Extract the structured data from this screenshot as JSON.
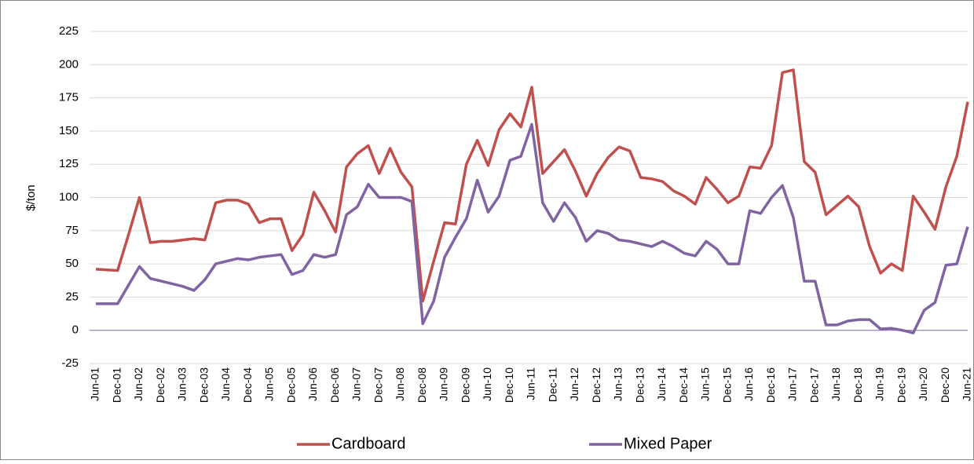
{
  "chart_data": {
    "type": "line",
    "y_label": "$/ton",
    "categories": [
      "Jun-01",
      null,
      "Dec-01",
      null,
      "Jun-02",
      null,
      "Dec-02",
      null,
      "Jun-03",
      null,
      "Dec-03",
      null,
      "Jun-04",
      null,
      "Dec-04",
      null,
      "Jun-05",
      null,
      "Dec-05",
      null,
      "Jun-06",
      null,
      "Dec-06",
      null,
      "Jun-07",
      null,
      "Dec-07",
      null,
      "Jun-08",
      null,
      "Dec-08",
      null,
      "Jun-09",
      null,
      "Dec-09",
      null,
      "Jun-10",
      null,
      "Dec-10",
      null,
      "Jun-11",
      null,
      "Dec-11",
      null,
      "Jun-12",
      null,
      "Dec-12",
      null,
      "Jun-13",
      null,
      "Dec-13",
      null,
      "Jun-14",
      null,
      "Dec-14",
      null,
      "Jun-15",
      null,
      "Dec-15",
      null,
      "Jun-16",
      null,
      "Dec-16",
      null,
      "Jun-17",
      null,
      "Dec-17",
      null,
      "Jun-18",
      null,
      "Dec-18",
      null,
      "Jun-19",
      null,
      "Dec-19",
      null,
      "Jun-20",
      null,
      "Dec-20",
      null,
      "Jun-21"
    ],
    "series": [
      {
        "name": "Cardboard",
        "color": "#c0504d",
        "values": [
          46,
          45.5,
          45,
          72,
          100,
          66,
          67,
          67,
          68,
          69,
          68,
          96,
          98,
          98,
          95,
          81,
          84,
          84,
          60,
          72,
          104,
          90,
          74,
          123,
          133,
          139,
          118,
          137,
          119,
          108,
          22,
          52,
          81,
          80,
          125,
          143,
          124,
          151,
          163,
          153,
          183,
          118,
          127,
          136,
          120,
          101,
          118,
          130,
          138,
          135,
          115,
          114,
          112,
          105,
          101,
          95,
          115,
          106,
          96,
          101,
          123,
          122,
          139,
          194,
          196,
          127,
          119,
          87,
          94,
          101,
          93,
          63,
          43,
          50,
          45,
          101,
          89,
          76,
          108,
          131,
          172
        ]
      },
      {
        "name": "Mixed Paper",
        "color": "#8064a2",
        "values": [
          20,
          20,
          20,
          34,
          48,
          39,
          37,
          35,
          33,
          30,
          38,
          50,
          52,
          54,
          53,
          55,
          56,
          57,
          42,
          45,
          57,
          55,
          57,
          87,
          93,
          110,
          100,
          100,
          100,
          97,
          5,
          22,
          55,
          70,
          84,
          113,
          89,
          101,
          128,
          131,
          155,
          96,
          82,
          96,
          85,
          67,
          75,
          73,
          68,
          67,
          65,
          63,
          67,
          63,
          58,
          56,
          67,
          61,
          50,
          50,
          90,
          88,
          100,
          109,
          85,
          37,
          37,
          4,
          4,
          7,
          8,
          8,
          1,
          1.5,
          0,
          -2,
          15,
          21,
          49,
          50,
          78
        ]
      }
    ],
    "ylim": [
      -25,
      225
    ],
    "yticks": [
      -25,
      0,
      25,
      50,
      75,
      100,
      125,
      150,
      175,
      200,
      225
    ],
    "grid": true,
    "legend": "bottom"
  }
}
